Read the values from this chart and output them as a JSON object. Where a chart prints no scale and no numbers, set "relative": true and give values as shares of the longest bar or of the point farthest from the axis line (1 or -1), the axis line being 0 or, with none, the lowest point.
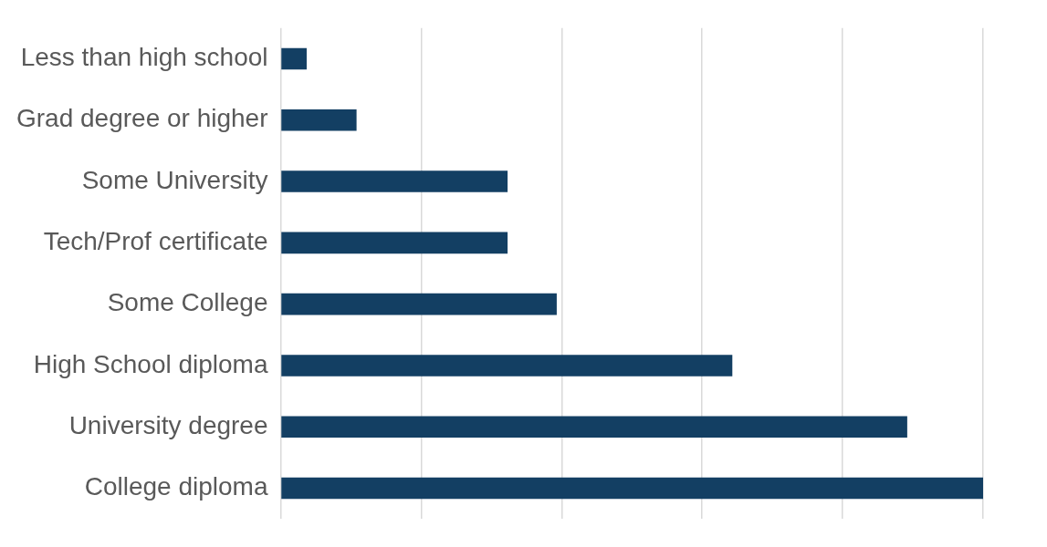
{
  "chart_data": {
    "type": "bar",
    "orientation": "horizontal",
    "relative": true,
    "grid": "x",
    "legend": false,
    "tick_labels": "y",
    "categories": [
      "Less than high school",
      "Grad degree or higher",
      "Some University",
      "Tech/Prof certificate",
      "Some College",
      "High School diploma",
      "University degree",
      "College diploma"
    ],
    "values": [
      0.037,
      0.108,
      0.323,
      0.323,
      0.393,
      0.643,
      0.892,
      1
    ],
    "color": "#133f63"
  }
}
